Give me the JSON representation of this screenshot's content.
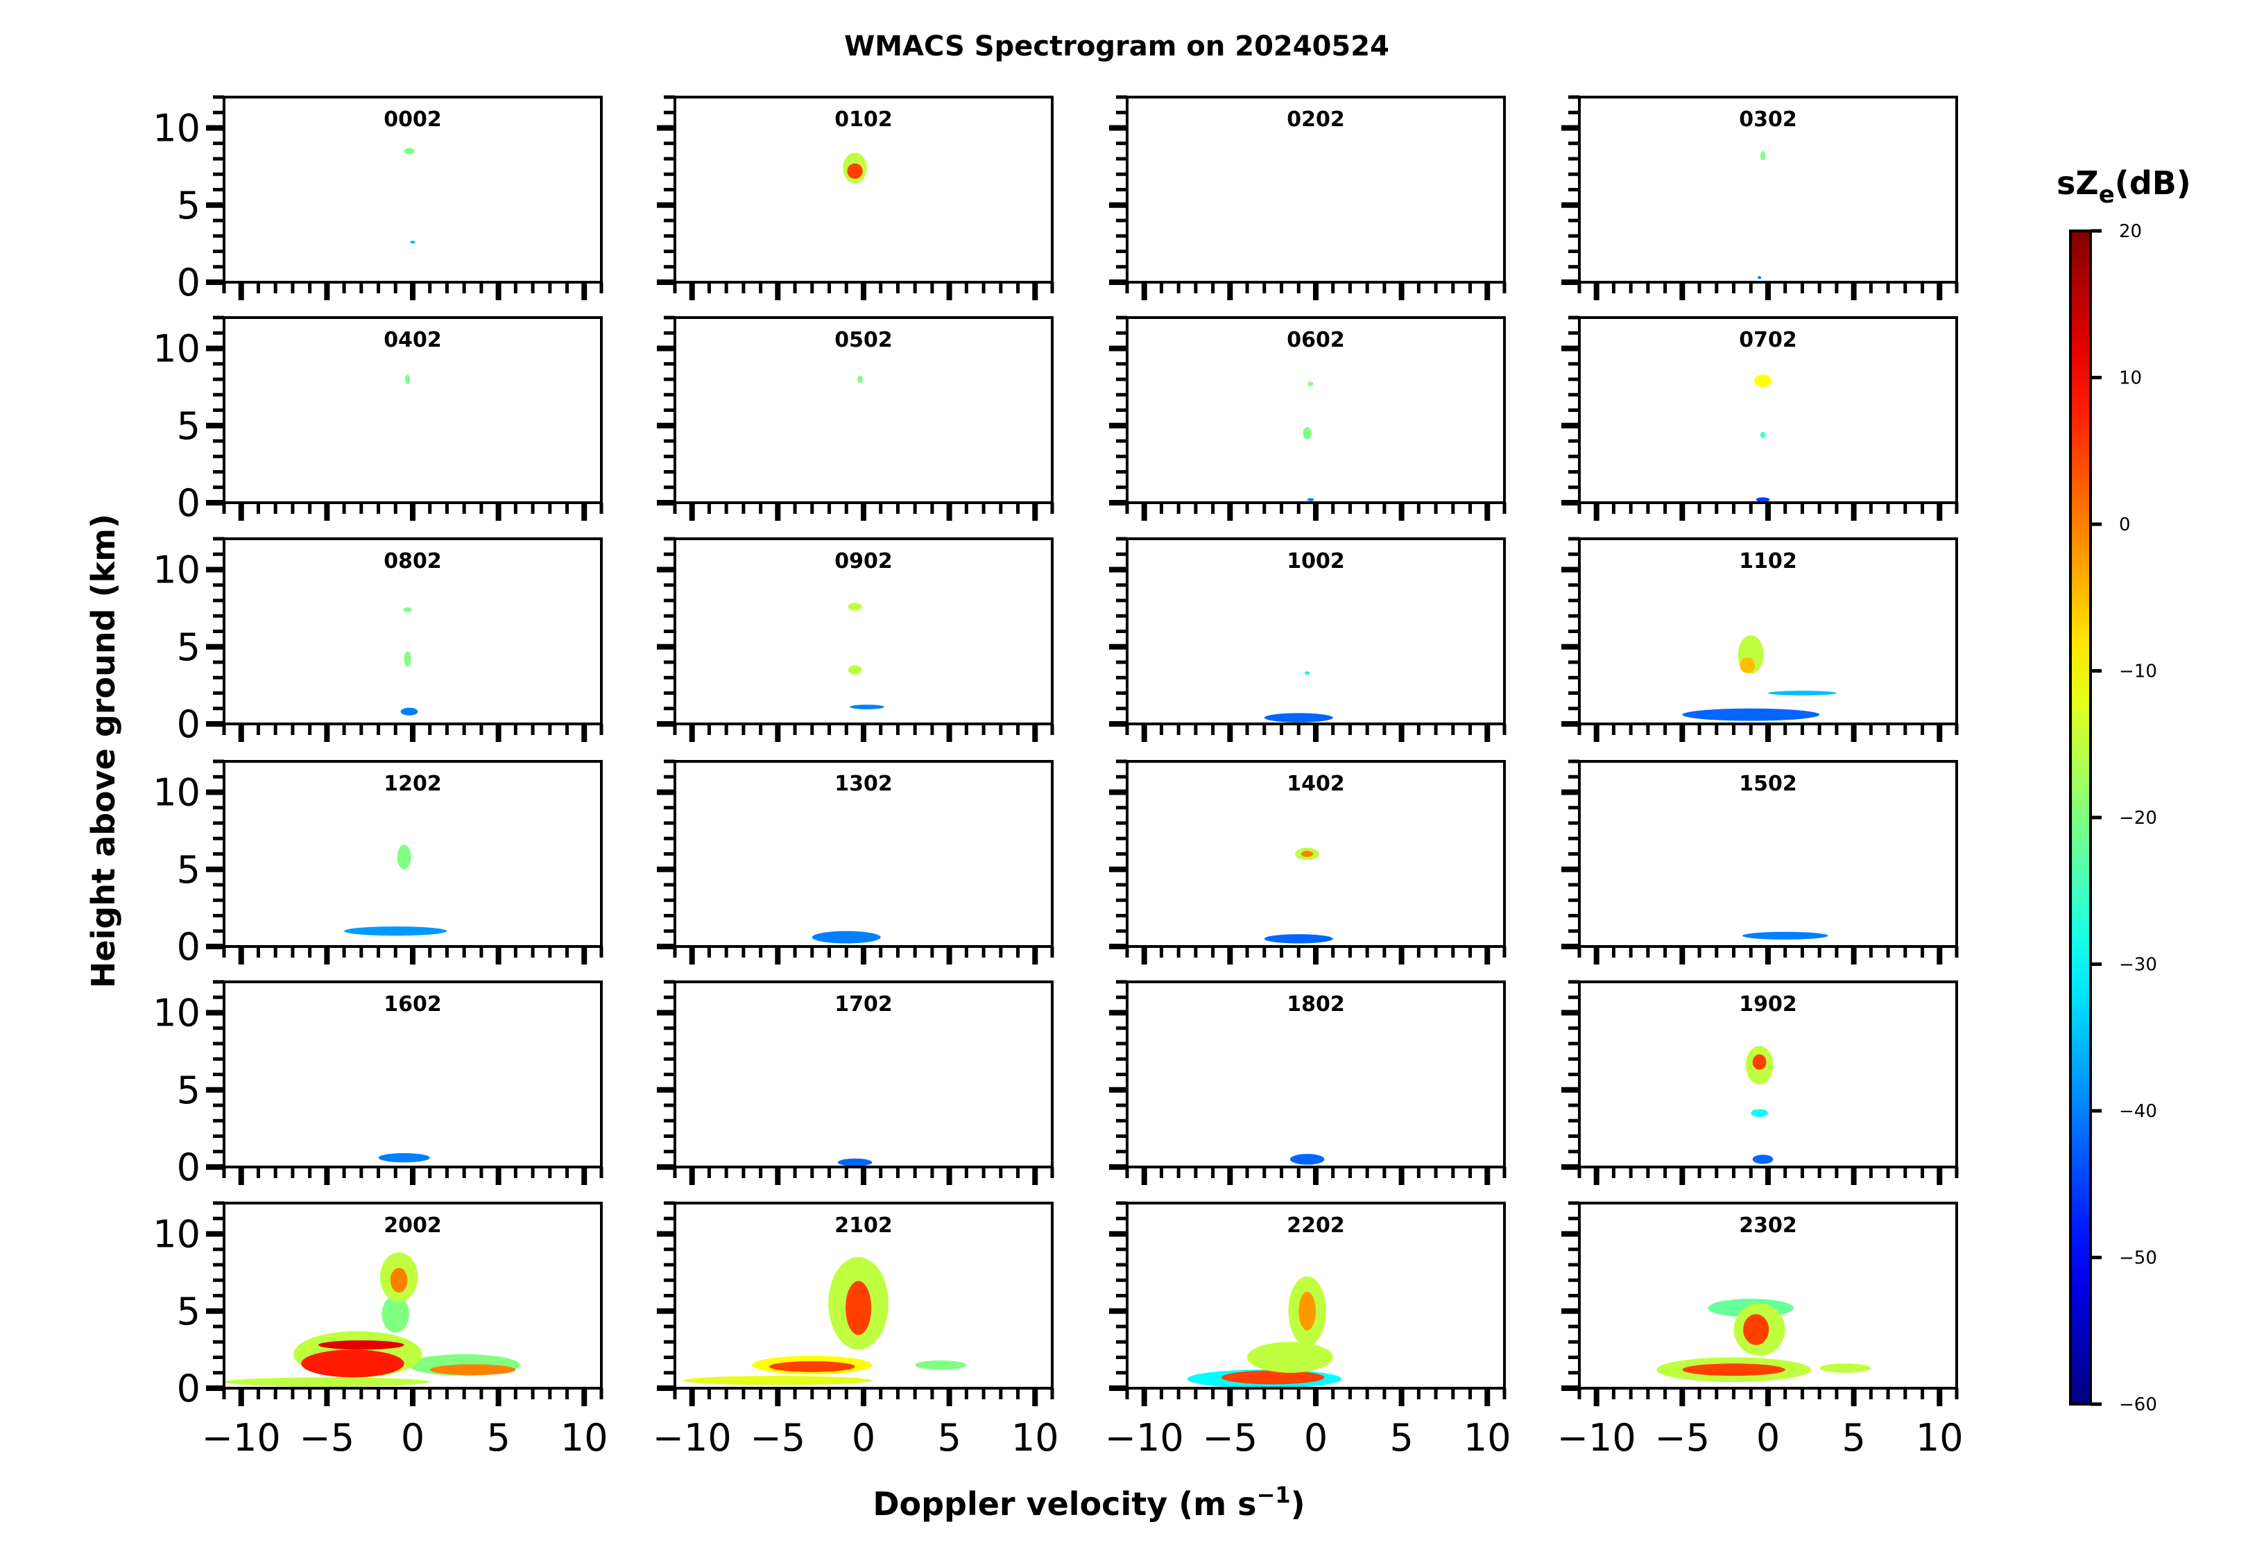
{
  "chart_data": {
    "type": "heatmap",
    "title": "WMACS Spectrogram on 20240524",
    "xlabel": "Doppler velocity (m s",
    "xlabel_sup": "−1",
    "xlabel_end": ")",
    "ylabel": "Height above ground (km)",
    "xlim": [
      -11,
      11
    ],
    "ylim": [
      0,
      12
    ],
    "xticks": [
      -10,
      -5,
      0,
      5,
      10
    ],
    "xtick_labels": [
      "−10",
      "−5",
      "0",
      "5",
      "10"
    ],
    "yticks": [
      0,
      5,
      10
    ],
    "ytick_labels": [
      "0",
      "5",
      "10"
    ],
    "colorbar": {
      "label": "sZ",
      "label_sub": "e",
      "label_end": "(dB)",
      "range": [
        -60,
        20
      ],
      "ticks": [
        20,
        10,
        0,
        -10,
        -20,
        -30,
        -40,
        -50,
        -60
      ],
      "tick_labels": [
        "20",
        "10",
        "0",
        "−10",
        "−20",
        "−30",
        "−40",
        "−50",
        "−60"
      ],
      "colormap": "jet"
    },
    "panels": [
      {
        "title": "0002",
        "features": [
          [
            -0.2,
            8.5,
            0.6,
            0.4,
            -20
          ],
          [
            0,
            2.6,
            0.3,
            0.15,
            -35
          ]
        ]
      },
      {
        "title": "0102",
        "features": [
          [
            -0.5,
            7.4,
            1.4,
            2.0,
            -15
          ],
          [
            -0.5,
            7.2,
            0.9,
            1.0,
            5
          ]
        ]
      },
      {
        "title": "0202",
        "features": []
      },
      {
        "title": "0302",
        "features": [
          [
            -0.3,
            8.2,
            0.3,
            0.6,
            -20
          ],
          [
            -0.5,
            0.3,
            0.2,
            0.2,
            -40
          ]
        ]
      },
      {
        "title": "0402",
        "features": [
          [
            -0.3,
            8.0,
            0.3,
            0.6,
            -20
          ]
        ]
      },
      {
        "title": "0502",
        "features": [
          [
            -0.2,
            8.0,
            0.3,
            0.5,
            -20
          ]
        ]
      },
      {
        "title": "0602",
        "features": [
          [
            -0.3,
            7.7,
            0.3,
            0.3,
            -20
          ],
          [
            -0.5,
            4.5,
            0.5,
            0.8,
            -20
          ],
          [
            -0.3,
            0.2,
            0.4,
            0.2,
            -40
          ]
        ]
      },
      {
        "title": "0702",
        "features": [
          [
            -0.3,
            7.9,
            1.0,
            0.8,
            -10
          ],
          [
            -0.3,
            4.4,
            0.3,
            0.4,
            -25
          ],
          [
            -0.3,
            0.2,
            0.8,
            0.3,
            -45
          ]
        ]
      },
      {
        "title": "0802",
        "features": [
          [
            -0.3,
            7.4,
            0.5,
            0.3,
            -20
          ],
          [
            -0.3,
            4.2,
            0.4,
            1.0,
            -20
          ],
          [
            -0.2,
            0.8,
            1.0,
            0.5,
            -40
          ]
        ]
      },
      {
        "title": "0902",
        "features": [
          [
            -0.5,
            7.6,
            0.8,
            0.5,
            -15
          ],
          [
            -0.5,
            3.5,
            0.8,
            0.6,
            -15
          ],
          [
            0.2,
            1.1,
            2.0,
            0.3,
            -40
          ]
        ]
      },
      {
        "title": "1002",
        "features": [
          [
            -0.5,
            3.3,
            0.3,
            0.2,
            -30
          ],
          [
            -1,
            0.4,
            4,
            0.6,
            -42
          ]
        ]
      },
      {
        "title": "1102",
        "features": [
          [
            -1,
            4.5,
            1.5,
            2.5,
            -15
          ],
          [
            -1.2,
            3.8,
            0.9,
            1.0,
            -5
          ],
          [
            2,
            2,
            4,
            0.3,
            -35
          ],
          [
            -1,
            0.6,
            8,
            0.8,
            -42
          ]
        ]
      },
      {
        "title": "1202",
        "features": [
          [
            -0.5,
            5.8,
            0.8,
            1.6,
            -20
          ],
          [
            -1,
            1.0,
            6,
            0.6,
            -38
          ]
        ]
      },
      {
        "title": "1302",
        "features": [
          [
            -1,
            0.6,
            4,
            0.8,
            -40
          ]
        ]
      },
      {
        "title": "1402",
        "features": [
          [
            -0.5,
            6,
            1.4,
            0.8,
            -15
          ],
          [
            -0.5,
            6,
            0.7,
            0.4,
            0
          ],
          [
            -1,
            0.5,
            4,
            0.6,
            -42
          ]
        ]
      },
      {
        "title": "1502",
        "features": [
          [
            1,
            0.7,
            5,
            0.5,
            -40
          ]
        ]
      },
      {
        "title": "1602",
        "features": [
          [
            -0.5,
            0.6,
            3,
            0.6,
            -40
          ]
        ]
      },
      {
        "title": "1702",
        "features": [
          [
            -0.5,
            0.3,
            2,
            0.5,
            -42
          ]
        ]
      },
      {
        "title": "1802",
        "features": [
          [
            -0.5,
            0.5,
            2,
            0.7,
            -42
          ]
        ]
      },
      {
        "title": "1902",
        "features": [
          [
            -0.5,
            6.6,
            1.6,
            2.5,
            -15
          ],
          [
            -0.5,
            6.8,
            0.8,
            1.0,
            5
          ],
          [
            -0.5,
            3.5,
            1,
            0.5,
            -30
          ],
          [
            -0.3,
            0.5,
            1.2,
            0.6,
            -42
          ]
        ]
      },
      {
        "title": "2002",
        "features": [
          [
            -5,
            0.4,
            12,
            0.6,
            -15
          ],
          [
            3,
            1.5,
            6.5,
            1.4,
            -20
          ],
          [
            3.5,
            1.2,
            5,
            0.7,
            0
          ],
          [
            -3.2,
            2.2,
            7.5,
            3.0,
            -15
          ],
          [
            -3.5,
            1.6,
            6,
            1.8,
            8
          ],
          [
            -3,
            2.8,
            5,
            0.6,
            12
          ],
          [
            -1,
            4.8,
            1.6,
            2.4,
            -20
          ],
          [
            -0.8,
            7.2,
            2.2,
            3.2,
            -15
          ],
          [
            -0.8,
            7.0,
            1.0,
            1.6,
            0
          ]
        ]
      },
      {
        "title": "2102",
        "features": [
          [
            -5,
            0.5,
            11,
            0.6,
            -12
          ],
          [
            -3,
            1.5,
            7,
            1.2,
            -10
          ],
          [
            -3,
            1.4,
            5,
            0.7,
            5
          ],
          [
            4.5,
            1.5,
            3,
            0.6,
            -20
          ],
          [
            -0.3,
            5.5,
            3.5,
            6,
            -15
          ],
          [
            -0.3,
            5.2,
            1.5,
            3.5,
            5
          ]
        ]
      },
      {
        "title": "2202",
        "features": [
          [
            -3,
            0.6,
            9,
            1.2,
            -30
          ],
          [
            -2.5,
            0.7,
            6,
            0.9,
            5
          ],
          [
            -1.5,
            2.0,
            5,
            2,
            -15
          ],
          [
            -0.5,
            5,
            2.2,
            4.5,
            -15
          ],
          [
            -0.5,
            5,
            1,
            2.5,
            -2
          ]
        ]
      },
      {
        "title": "2302",
        "features": [
          [
            -2,
            1.2,
            9,
            1.6,
            -15
          ],
          [
            -2,
            1.2,
            6,
            0.8,
            5
          ],
          [
            4.5,
            1.3,
            3,
            0.6,
            -15
          ],
          [
            -1,
            5.2,
            5,
            1.2,
            -22
          ],
          [
            -0.5,
            3.8,
            3,
            3.4,
            -15
          ],
          [
            -0.7,
            3.8,
            1.5,
            2.0,
            5
          ]
        ]
      }
    ]
  }
}
